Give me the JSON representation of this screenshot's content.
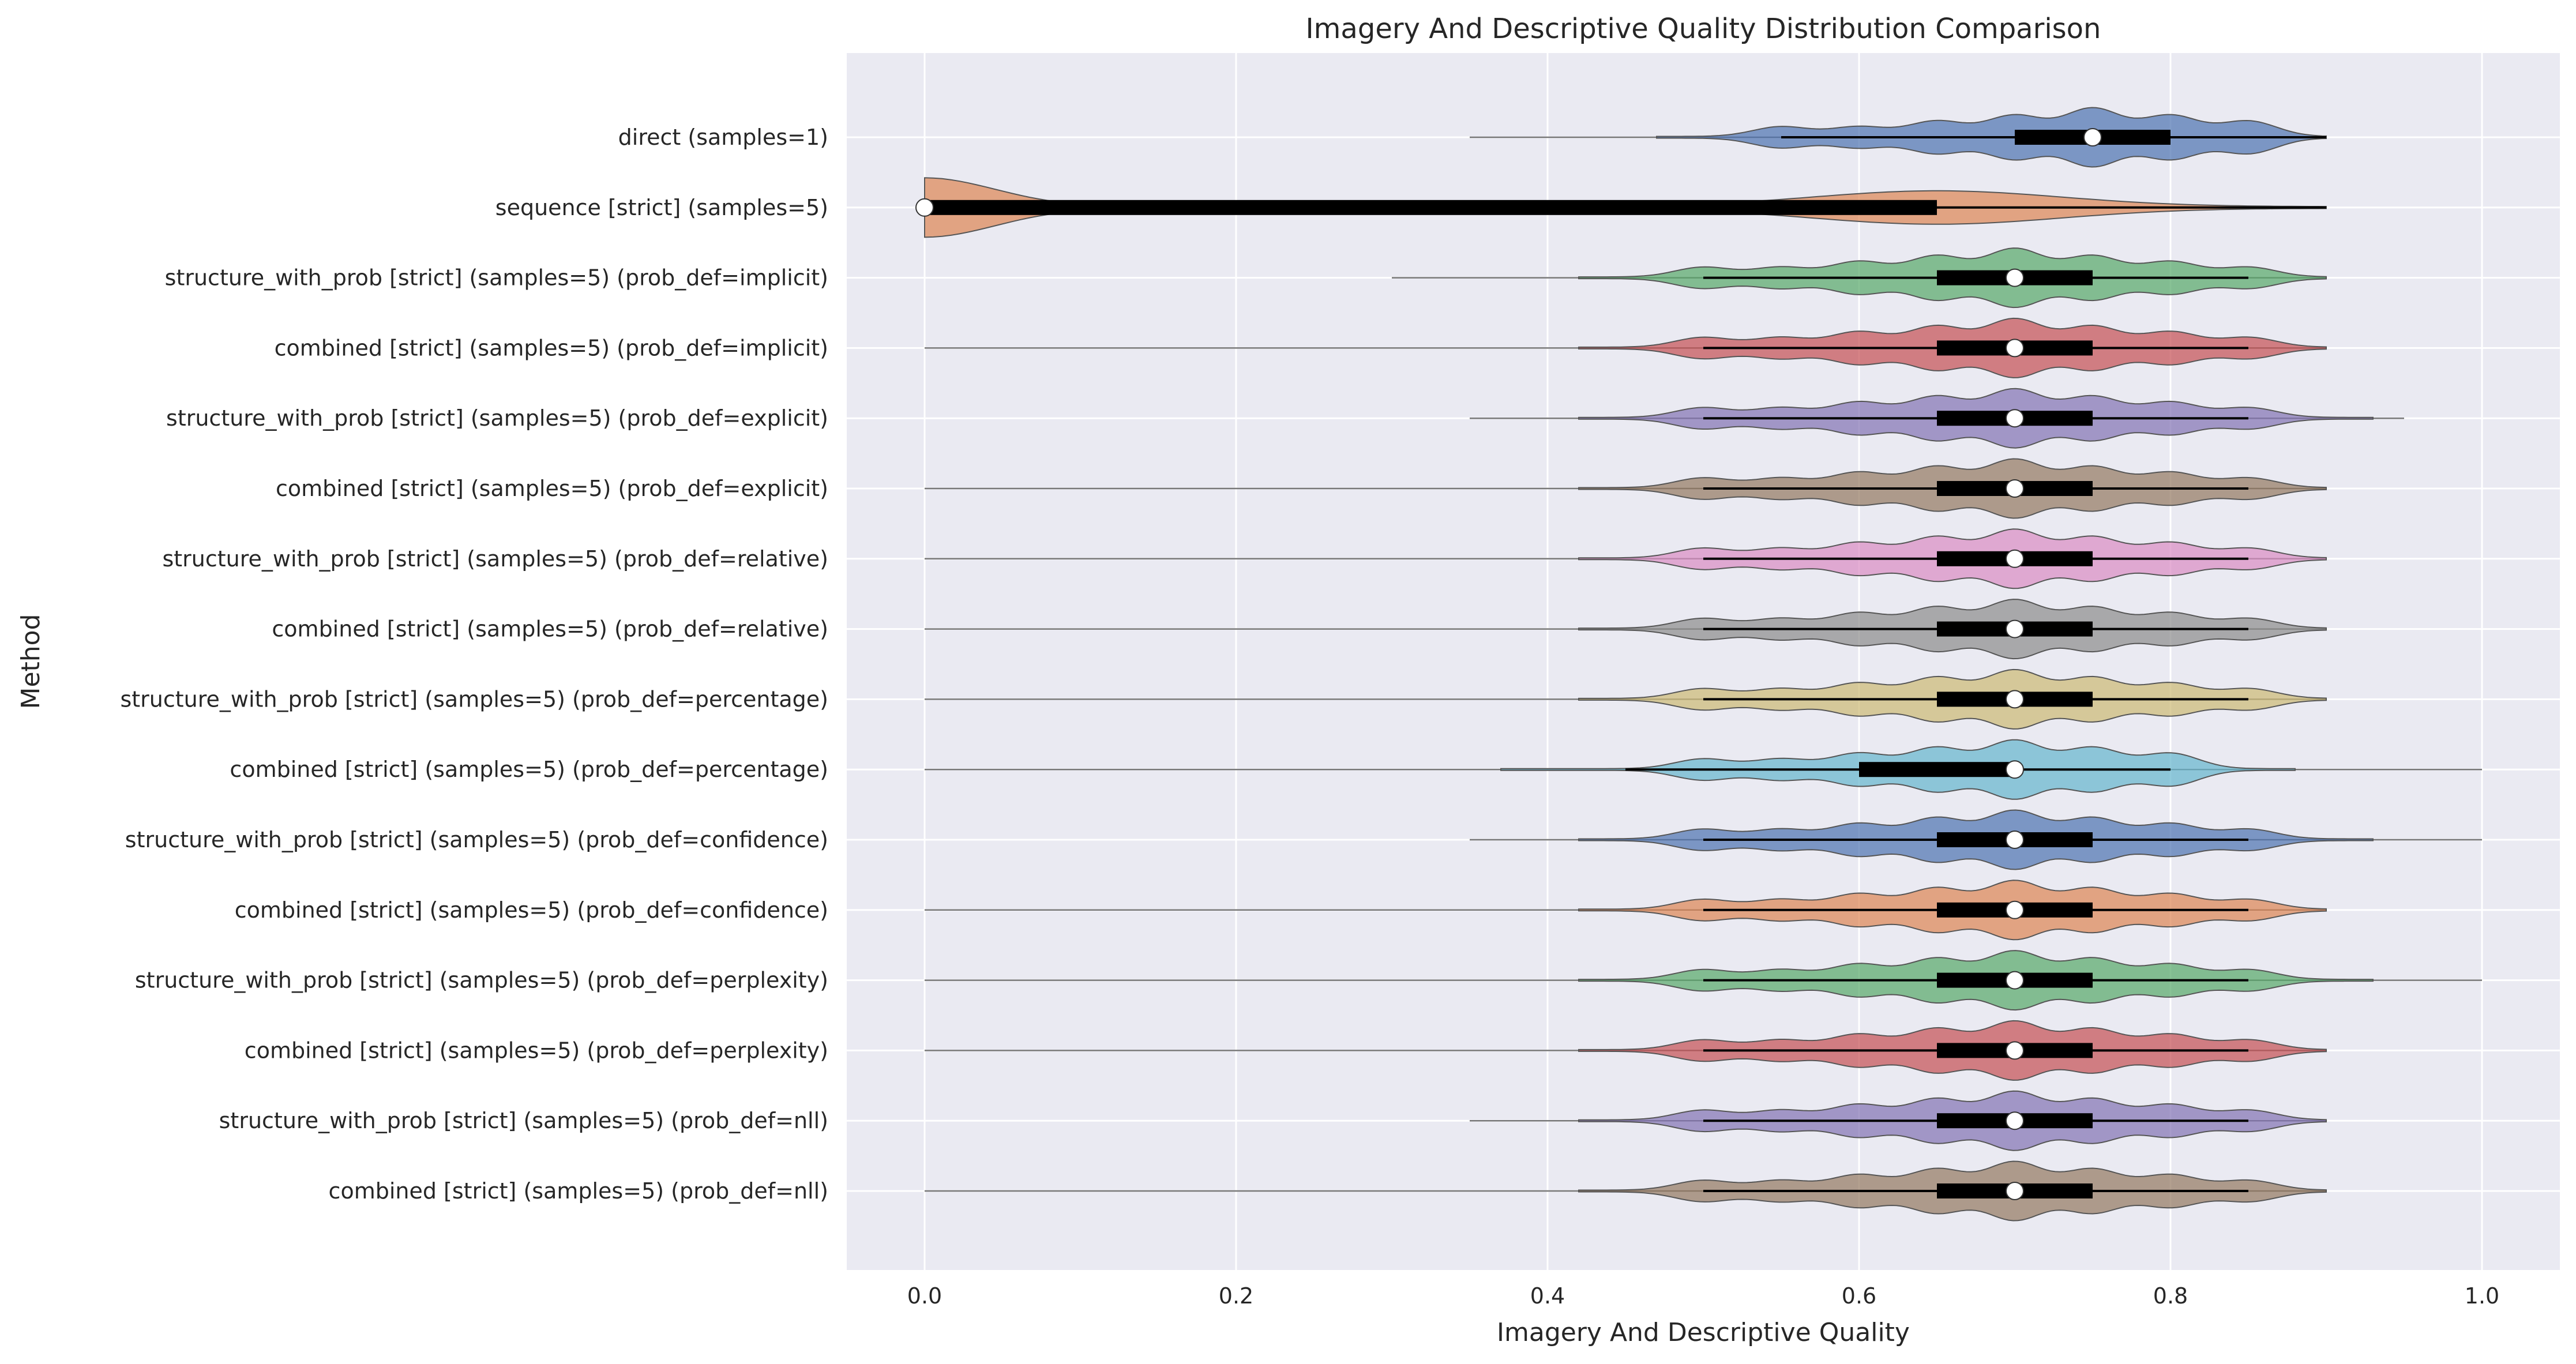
{
  "chart_data": {
    "type": "violin",
    "orientation": "horizontal",
    "title": "Imagery And Descriptive Quality Distribution Comparison",
    "xlabel": "Imagery And Descriptive Quality",
    "ylabel": "Method",
    "xlim": [
      -0.05,
      1.05
    ],
    "xticks": [
      0.0,
      0.2,
      0.4,
      0.6,
      0.8,
      1.0
    ],
    "xtick_labels": [
      "0.0",
      "0.2",
      "0.4",
      "0.6",
      "0.8",
      "1.0"
    ],
    "grid": true,
    "background": "#eaeaf2",
    "series": [
      {
        "label": "direct (samples=1)",
        "color": "#4c72b0",
        "min": 0.35,
        "max": 0.9,
        "q1": 0.7,
        "median": 0.75,
        "q3": 0.8,
        "whisker_low": 0.55,
        "whisker_high": 0.9,
        "peaks": [
          0.55,
          0.6,
          0.65,
          0.7,
          0.75,
          0.8,
          0.85
        ]
      },
      {
        "label": "sequence [strict] (samples=5)",
        "color": "#dd8452",
        "min": 0.0,
        "max": 0.9,
        "q1": 0.0,
        "median": 0.0,
        "q3": 0.65,
        "whisker_low": 0.0,
        "whisker_high": 0.9,
        "peaks": [
          0.0,
          0.65
        ]
      },
      {
        "label": "structure_with_prob [strict] (samples=5) (prob_def=implicit)",
        "color": "#55a868",
        "min": 0.3,
        "max": 0.9,
        "q1": 0.65,
        "median": 0.7,
        "q3": 0.75,
        "whisker_low": 0.5,
        "whisker_high": 0.85,
        "peaks": [
          0.5,
          0.55,
          0.6,
          0.65,
          0.7,
          0.75,
          0.8,
          0.85
        ]
      },
      {
        "label": "combined [strict] (samples=5) (prob_def=implicit)",
        "color": "#c44e52",
        "min": 0.0,
        "max": 0.9,
        "q1": 0.65,
        "median": 0.7,
        "q3": 0.75,
        "whisker_low": 0.5,
        "whisker_high": 0.85,
        "peaks": [
          0.5,
          0.55,
          0.6,
          0.65,
          0.7,
          0.75,
          0.8,
          0.85
        ]
      },
      {
        "label": "structure_with_prob [strict] (samples=5) (prob_def=explicit)",
        "color": "#8172b3",
        "min": 0.35,
        "max": 0.95,
        "q1": 0.65,
        "median": 0.7,
        "q3": 0.75,
        "whisker_low": 0.5,
        "whisker_high": 0.85,
        "peaks": [
          0.5,
          0.55,
          0.6,
          0.65,
          0.7,
          0.75,
          0.8,
          0.85
        ]
      },
      {
        "label": "combined [strict] (samples=5) (prob_def=explicit)",
        "color": "#937860",
        "min": 0.0,
        "max": 0.9,
        "q1": 0.65,
        "median": 0.7,
        "q3": 0.75,
        "whisker_low": 0.5,
        "whisker_high": 0.85,
        "peaks": [
          0.5,
          0.55,
          0.6,
          0.65,
          0.7,
          0.75,
          0.8,
          0.85
        ]
      },
      {
        "label": "structure_with_prob [strict] (samples=5) (prob_def=relative)",
        "color": "#da8bc3",
        "min": 0.0,
        "max": 0.9,
        "q1": 0.65,
        "median": 0.7,
        "q3": 0.75,
        "whisker_low": 0.5,
        "whisker_high": 0.85,
        "peaks": [
          0.5,
          0.55,
          0.6,
          0.65,
          0.7,
          0.75,
          0.8,
          0.85
        ]
      },
      {
        "label": "combined [strict] (samples=5) (prob_def=relative)",
        "color": "#8c8c8c",
        "min": 0.0,
        "max": 0.9,
        "q1": 0.65,
        "median": 0.7,
        "q3": 0.75,
        "whisker_low": 0.5,
        "whisker_high": 0.85,
        "peaks": [
          0.5,
          0.55,
          0.6,
          0.65,
          0.7,
          0.75,
          0.8,
          0.85
        ]
      },
      {
        "label": "structure_with_prob [strict] (samples=5) (prob_def=percentage)",
        "color": "#ccb974",
        "min": 0.0,
        "max": 0.9,
        "q1": 0.65,
        "median": 0.7,
        "q3": 0.75,
        "whisker_low": 0.5,
        "whisker_high": 0.85,
        "peaks": [
          0.5,
          0.55,
          0.6,
          0.65,
          0.7,
          0.75,
          0.8,
          0.85
        ]
      },
      {
        "label": "combined [strict] (samples=5) (prob_def=percentage)",
        "color": "#64b5cd",
        "min": 0.0,
        "max": 1.0,
        "q1": 0.6,
        "median": 0.7,
        "q3": 0.7,
        "whisker_low": 0.45,
        "whisker_high": 0.8,
        "peaks": [
          0.5,
          0.55,
          0.6,
          0.65,
          0.7,
          0.75,
          0.8
        ]
      },
      {
        "label": "structure_with_prob [strict] (samples=5) (prob_def=confidence)",
        "color": "#4c72b0",
        "min": 0.35,
        "max": 1.0,
        "q1": 0.65,
        "median": 0.7,
        "q3": 0.75,
        "whisker_low": 0.5,
        "whisker_high": 0.85,
        "peaks": [
          0.5,
          0.55,
          0.6,
          0.65,
          0.7,
          0.75,
          0.8,
          0.85
        ]
      },
      {
        "label": "combined [strict] (samples=5) (prob_def=confidence)",
        "color": "#dd8452",
        "min": 0.0,
        "max": 0.9,
        "q1": 0.65,
        "median": 0.7,
        "q3": 0.75,
        "whisker_low": 0.5,
        "whisker_high": 0.85,
        "peaks": [
          0.5,
          0.55,
          0.6,
          0.65,
          0.7,
          0.75,
          0.8,
          0.85
        ]
      },
      {
        "label": "structure_with_prob [strict] (samples=5) (prob_def=perplexity)",
        "color": "#55a868",
        "min": 0.0,
        "max": 1.0,
        "q1": 0.65,
        "median": 0.7,
        "q3": 0.75,
        "whisker_low": 0.5,
        "whisker_high": 0.85,
        "peaks": [
          0.5,
          0.55,
          0.6,
          0.65,
          0.7,
          0.75,
          0.8,
          0.85
        ]
      },
      {
        "label": "combined [strict] (samples=5) (prob_def=perplexity)",
        "color": "#c44e52",
        "min": 0.0,
        "max": 0.9,
        "q1": 0.65,
        "median": 0.7,
        "q3": 0.75,
        "whisker_low": 0.5,
        "whisker_high": 0.85,
        "peaks": [
          0.5,
          0.55,
          0.6,
          0.65,
          0.7,
          0.75,
          0.8,
          0.85
        ]
      },
      {
        "label": "structure_with_prob [strict] (samples=5) (prob_def=nll)",
        "color": "#8172b3",
        "min": 0.35,
        "max": 0.9,
        "q1": 0.65,
        "median": 0.7,
        "q3": 0.75,
        "whisker_low": 0.5,
        "whisker_high": 0.85,
        "peaks": [
          0.5,
          0.55,
          0.6,
          0.65,
          0.7,
          0.75,
          0.8,
          0.85
        ]
      },
      {
        "label": "combined [strict] (samples=5) (prob_def=nll)",
        "color": "#937860",
        "min": 0.0,
        "max": 0.9,
        "q1": 0.65,
        "median": 0.7,
        "q3": 0.75,
        "whisker_low": 0.5,
        "whisker_high": 0.85,
        "peaks": [
          0.5,
          0.55,
          0.6,
          0.65,
          0.7,
          0.75,
          0.8,
          0.85
        ]
      }
    ]
  }
}
